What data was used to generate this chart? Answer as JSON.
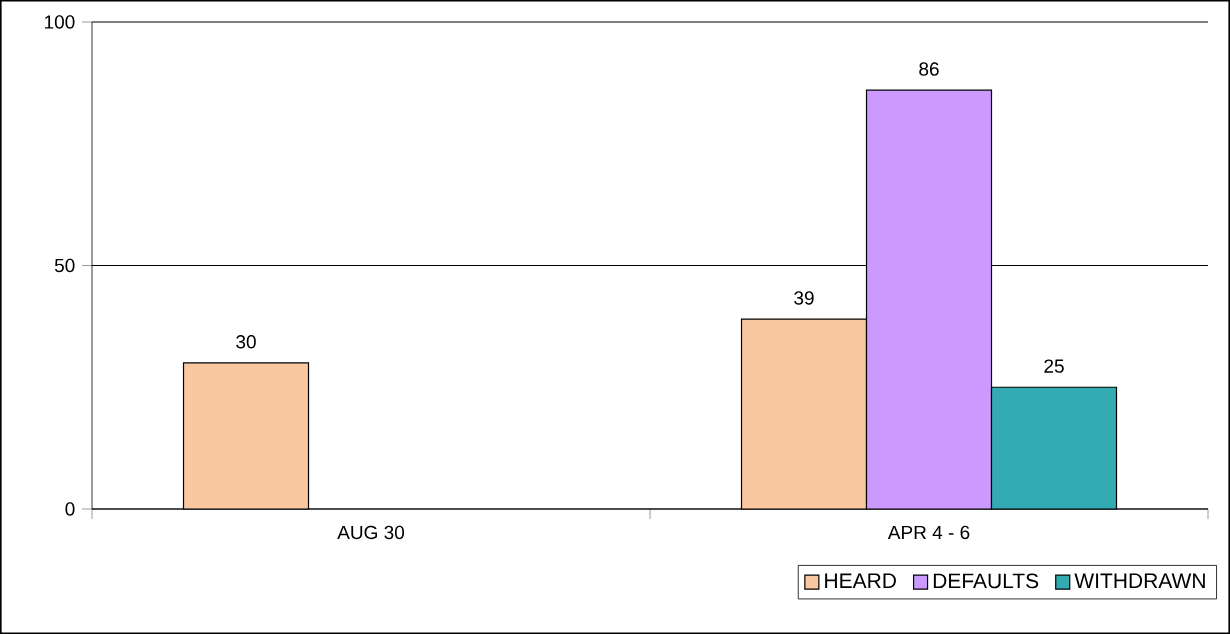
{
  "chart_data": {
    "type": "bar",
    "categories": [
      "AUG 30",
      "APR 4 - 6"
    ],
    "series": [
      {
        "name": "HEARD",
        "color": "#fac8a0",
        "values": [
          30,
          39
        ]
      },
      {
        "name": "DEFAULTS",
        "color": "#cc99ff",
        "values": [
          null,
          86
        ]
      },
      {
        "name": "WITHDRAWN",
        "color": "#33abb3",
        "values": [
          null,
          25
        ]
      }
    ],
    "ylim": [
      0,
      100
    ],
    "yticks": [
      0,
      50,
      100
    ],
    "grid": "y",
    "legend": "bottom right",
    "data_labels": true
  }
}
